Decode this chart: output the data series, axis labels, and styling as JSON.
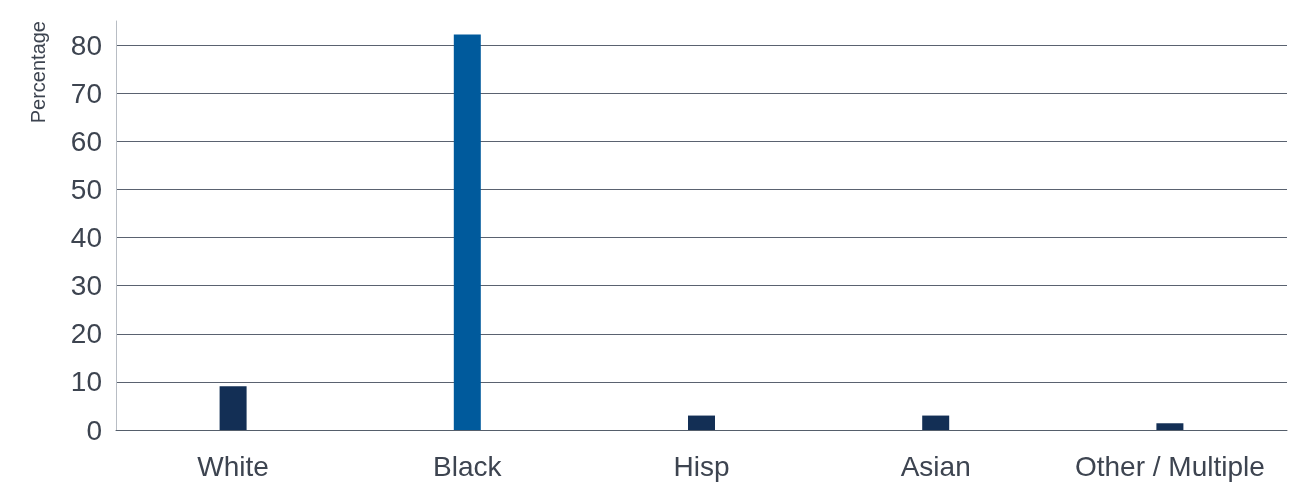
{
  "chart_data": {
    "type": "bar",
    "ylabel": "Percentage",
    "categories": [
      "White",
      "Black",
      "Hisp",
      "Asian",
      "Other / Multiple"
    ],
    "values": [
      9.1,
      82.2,
      3.0,
      3.0,
      1.4
    ],
    "colors": [
      "#132f55",
      "#005a9c",
      "#132f55",
      "#132f55",
      "#132f55"
    ],
    "ylim": [
      0,
      85
    ],
    "yticks": [
      0,
      10,
      20,
      30,
      40,
      50,
      60,
      70,
      80
    ],
    "grid": "y"
  }
}
